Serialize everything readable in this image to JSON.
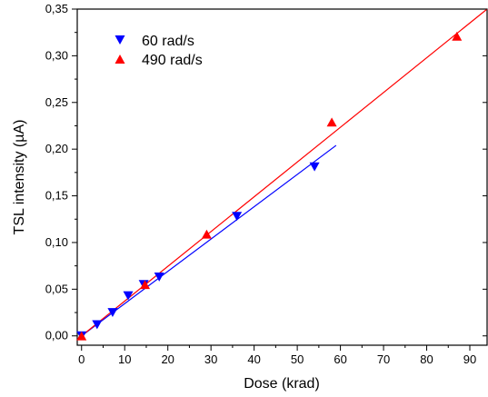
{
  "chart_data": {
    "type": "scatter",
    "xlabel": "Dose (krad)",
    "ylabel": "TSL intensity (µA)",
    "xlim": [
      -1,
      94
    ],
    "ylim": [
      -0.01,
      0.35
    ],
    "xticks": [
      0,
      10,
      20,
      30,
      40,
      50,
      60,
      70,
      80,
      90
    ],
    "xtick_labels": [
      "0",
      "10",
      "20",
      "30",
      "40",
      "50",
      "60",
      "70",
      "80",
      "90"
    ],
    "yticks": [
      0.0,
      0.05,
      0.1,
      0.15,
      0.2,
      0.25,
      0.3,
      0.35
    ],
    "ytick_labels": [
      "0,00",
      "0,05",
      "0,10",
      "0,15",
      "0,20",
      "0,25",
      "0,30",
      "0,35"
    ],
    "grid": false,
    "legend_position": "top-left",
    "series": [
      {
        "name": "60 rad/s",
        "marker": "triangle-down",
        "color": "#0000ff",
        "x": [
          0,
          3.6,
          7.2,
          10.8,
          14.4,
          18.0,
          36.0,
          54.0
        ],
        "y": [
          0.0,
          0.012,
          0.025,
          0.043,
          0.055,
          0.063,
          0.128,
          0.181
        ],
        "fit": {
          "x": [
            0,
            59
          ],
          "y": [
            0.0,
            0.204
          ]
        }
      },
      {
        "name": "490 rad/s",
        "marker": "triangle-up",
        "color": "#ff0000",
        "x": [
          0,
          14.7,
          29.0,
          58.0,
          87.0
        ],
        "y": [
          0.0,
          0.055,
          0.109,
          0.229,
          0.321
        ],
        "fit": {
          "x": [
            0,
            94
          ],
          "y": [
            0.0,
            0.35
          ]
        }
      }
    ]
  }
}
